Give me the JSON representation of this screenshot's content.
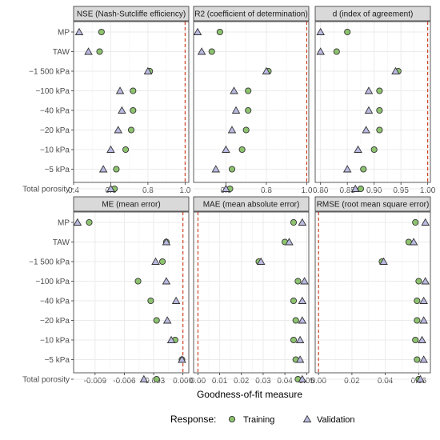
{
  "colors": {
    "training": "#8dc26f",
    "validation": "#b9b9e0",
    "outline": "#333333",
    "reference": "#cc3311",
    "strip": "#d9d9d9",
    "grid": "#ebebeb"
  },
  "legend": {
    "title": "Response:",
    "training_label": "Training",
    "validation_label": "Validation"
  },
  "x_axis_title": "Goodness-of-fit measure",
  "chart_data": [
    {
      "type": "scatter",
      "panel": "NSE (Nash-Sutcliffe efficiency)",
      "xlim": [
        0.4,
        1.02
      ],
      "ref": 1.0,
      "xticks": [
        0.4,
        0.6,
        0.8,
        1.0
      ],
      "xtick_labels": [
        "0.4",
        "0.6",
        "0.8",
        "1.0"
      ],
      "categories": [
        "MP",
        "TAW",
        "−1 500 kPa",
        "−100 kPa",
        "−40 kPa",
        "−20 kPa",
        "−10 kPa",
        "−5 kPa",
        "Total porosity"
      ],
      "series": [
        {
          "name": "Training",
          "values": [
            0.55,
            0.54,
            0.81,
            0.72,
            0.72,
            0.71,
            0.68,
            0.63,
            0.62
          ]
        },
        {
          "name": "Validation",
          "values": [
            0.43,
            0.48,
            0.8,
            0.65,
            0.66,
            0.64,
            0.6,
            0.56,
            0.6
          ]
        }
      ]
    },
    {
      "type": "scatter",
      "panel": "R2 (coefficient of determination)",
      "xlim": [
        0.44,
        1.01
      ],
      "ref": 1.0,
      "xticks": [
        0.6,
        0.8,
        1.0
      ],
      "xtick_labels": [
        "0.6",
        "0.8",
        "1.0"
      ],
      "categories": [
        "MP",
        "TAW",
        "−1 500 kPa",
        "−100 kPa",
        "−40 kPa",
        "−20 kPa",
        "−10 kPa",
        "−5 kPa",
        "Total porosity"
      ],
      "series": [
        {
          "name": "Training",
          "values": [
            0.57,
            0.53,
            0.81,
            0.71,
            0.71,
            0.7,
            0.68,
            0.63,
            0.62
          ]
        },
        {
          "name": "Validation",
          "values": [
            0.46,
            0.48,
            0.8,
            0.64,
            0.65,
            0.63,
            0.6,
            0.55,
            0.6
          ]
        }
      ]
    },
    {
      "type": "scatter",
      "panel": "d (index of agreement)",
      "xlim": [
        0.79,
        1.005
      ],
      "ref": 1.0,
      "xticks": [
        0.8,
        0.85,
        0.9,
        0.95,
        1.0
      ],
      "xtick_labels": [
        "0.80",
        "0.85",
        "0.90",
        "0.95",
        "1.00"
      ],
      "categories": [
        "MP",
        "TAW",
        "−1 500 kPa",
        "−100 kPa",
        "−40 kPa",
        "−20 kPa",
        "−10 kPa",
        "−5 kPa",
        "Total porosity"
      ],
      "series": [
        {
          "name": "Training",
          "values": [
            0.85,
            0.83,
            0.945,
            0.91,
            0.91,
            0.91,
            0.9,
            0.88,
            0.875
          ]
        },
        {
          "name": "Validation",
          "values": [
            0.8,
            0.8,
            0.94,
            0.89,
            0.89,
            0.885,
            0.87,
            0.85,
            0.865
          ]
        }
      ]
    },
    {
      "type": "scatter",
      "panel": "ME (mean error)",
      "xlim": [
        -0.0112,
        0.0006
      ],
      "ref": 0.0,
      "xticks": [
        -0.009,
        -0.006,
        -0.003,
        0.0
      ],
      "xtick_labels": [
        "-0.009",
        "-0.006",
        "-0.003",
        "0.000"
      ],
      "categories": [
        "MP",
        "TAW",
        "−1 500 kPa",
        "−100 kPa",
        "−40 kPa",
        "−20 kPa",
        "−10 kPa",
        "−5 kPa",
        "Total porosity"
      ],
      "series": [
        {
          "name": "Training",
          "values": [
            -0.0096,
            -0.0017,
            -0.0021,
            -0.0046,
            -0.0033,
            -0.0027,
            -0.0008,
            -0.0001,
            -0.0027
          ]
        },
        {
          "name": "Validation",
          "values": [
            -0.0108,
            -0.0017,
            -0.0028,
            -0.0017,
            -0.0007,
            -0.0016,
            -0.0012,
            -0.0001,
            -0.004
          ]
        }
      ]
    },
    {
      "type": "scatter",
      "panel": "MAE (mean absolute error)",
      "xlim": [
        -0.002,
        0.051
      ],
      "ref": 0.0,
      "xticks": [
        0.0,
        0.01,
        0.02,
        0.03,
        0.04,
        0.05
      ],
      "xtick_labels": [
        "0.00",
        "0.01",
        "0.02",
        "0.03",
        "0.04",
        "0.05"
      ],
      "categories": [
        "MP",
        "TAW",
        "−1 500 kPa",
        "−100 kPa",
        "−40 kPa",
        "−20 kPa",
        "−10 kPa",
        "−5 kPa",
        "Total porosity"
      ],
      "series": [
        {
          "name": "Training",
          "values": [
            0.044,
            0.04,
            0.028,
            0.046,
            0.044,
            0.045,
            0.044,
            0.045,
            0.046
          ]
        },
        {
          "name": "Validation",
          "values": [
            0.048,
            0.042,
            0.029,
            0.049,
            0.048,
            0.048,
            0.047,
            0.047,
            0.048
          ]
        }
      ]
    },
    {
      "type": "scatter",
      "panel": "RMSE (root mean square error)",
      "xlim": [
        -0.002,
        0.067
      ],
      "ref": 0.0,
      "xticks": [
        0.0,
        0.02,
        0.04,
        0.06
      ],
      "xtick_labels": [
        "0.00",
        "0.02",
        "0.04",
        "0.06"
      ],
      "categories": [
        "MP",
        "TAW",
        "−1 500 kPa",
        "−100 kPa",
        "−40 kPa",
        "−20 kPa",
        "−10 kPa",
        "−5 kPa",
        "Total porosity"
      ],
      "series": [
        {
          "name": "Training",
          "values": [
            0.058,
            0.054,
            0.038,
            0.06,
            0.059,
            0.059,
            0.058,
            0.059,
            0.06
          ]
        },
        {
          "name": "Validation",
          "values": [
            0.064,
            0.057,
            0.039,
            0.064,
            0.063,
            0.063,
            0.062,
            0.063,
            0.061
          ]
        }
      ]
    }
  ]
}
